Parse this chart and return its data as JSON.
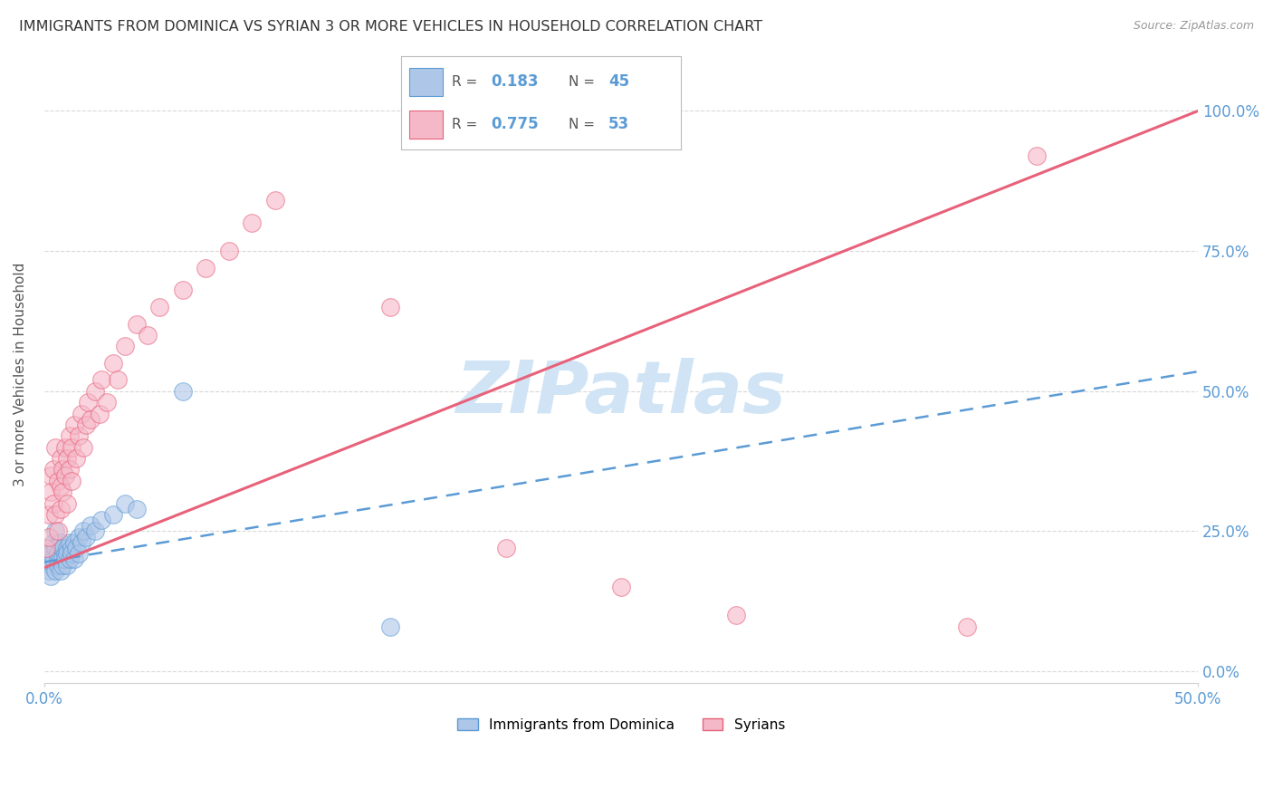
{
  "title": "IMMIGRANTS FROM DOMINICA VS SYRIAN 3 OR MORE VEHICLES IN HOUSEHOLD CORRELATION CHART",
  "source": "Source: ZipAtlas.com",
  "ylabel": "3 or more Vehicles in Household",
  "legend_label1": "Immigrants from Dominica",
  "legend_label2": "Syrians",
  "r1": 0.183,
  "n1": 45,
  "r2": 0.775,
  "n2": 53,
  "xlim": [
    0.0,
    0.5
  ],
  "ylim": [
    -0.02,
    1.08
  ],
  "yticks": [
    0.0,
    0.25,
    0.5,
    0.75,
    1.0
  ],
  "ytick_labels": [
    "0.0%",
    "25.0%",
    "50.0%",
    "75.0%",
    "100.0%"
  ],
  "xticks": [
    0.0,
    0.5
  ],
  "xtick_labels": [
    "0.0%",
    "50.0%"
  ],
  "color_blue": "#aec6e8",
  "color_pink": "#f5b8c8",
  "color_blue_line": "#5b9bd5",
  "color_pink_line": "#e8617a",
  "color_axis_labels": "#5b9bd5",
  "watermark_color": "#d0e4f5",
  "background_color": "#ffffff",
  "grid_color": "#d0d0d0",
  "dominica_x": [
    0.001,
    0.002,
    0.002,
    0.003,
    0.003,
    0.003,
    0.004,
    0.004,
    0.005,
    0.005,
    0.005,
    0.006,
    0.006,
    0.006,
    0.007,
    0.007,
    0.007,
    0.008,
    0.008,
    0.008,
    0.009,
    0.009,
    0.01,
    0.01,
    0.01,
    0.011,
    0.011,
    0.012,
    0.012,
    0.013,
    0.013,
    0.014,
    0.015,
    0.015,
    0.016,
    0.017,
    0.018,
    0.02,
    0.022,
    0.025,
    0.03,
    0.035,
    0.04,
    0.06,
    0.15
  ],
  "dominica_y": [
    0.22,
    0.2,
    0.18,
    0.21,
    0.19,
    0.17,
    0.23,
    0.2,
    0.25,
    0.22,
    0.18,
    0.2,
    0.19,
    0.21,
    0.23,
    0.2,
    0.18,
    0.22,
    0.2,
    0.19,
    0.21,
    0.2,
    0.22,
    0.21,
    0.19,
    0.23,
    0.2,
    0.22,
    0.21,
    0.23,
    0.2,
    0.22,
    0.24,
    0.21,
    0.23,
    0.25,
    0.24,
    0.26,
    0.25,
    0.27,
    0.28,
    0.3,
    0.29,
    0.5,
    0.08
  ],
  "syrian_x": [
    0.001,
    0.002,
    0.002,
    0.003,
    0.003,
    0.004,
    0.004,
    0.005,
    0.005,
    0.006,
    0.006,
    0.007,
    0.007,
    0.007,
    0.008,
    0.008,
    0.009,
    0.009,
    0.01,
    0.01,
    0.011,
    0.011,
    0.012,
    0.012,
    0.013,
    0.014,
    0.015,
    0.016,
    0.017,
    0.018,
    0.019,
    0.02,
    0.022,
    0.024,
    0.025,
    0.027,
    0.03,
    0.032,
    0.035,
    0.04,
    0.045,
    0.05,
    0.06,
    0.07,
    0.08,
    0.09,
    0.1,
    0.15,
    0.2,
    0.25,
    0.3,
    0.4,
    0.43
  ],
  "syrian_y": [
    0.22,
    0.28,
    0.24,
    0.35,
    0.32,
    0.3,
    0.36,
    0.28,
    0.4,
    0.34,
    0.25,
    0.38,
    0.33,
    0.29,
    0.36,
    0.32,
    0.4,
    0.35,
    0.38,
    0.3,
    0.42,
    0.36,
    0.4,
    0.34,
    0.44,
    0.38,
    0.42,
    0.46,
    0.4,
    0.44,
    0.48,
    0.45,
    0.5,
    0.46,
    0.52,
    0.48,
    0.55,
    0.52,
    0.58,
    0.62,
    0.6,
    0.65,
    0.68,
    0.72,
    0.75,
    0.8,
    0.84,
    0.65,
    0.22,
    0.15,
    0.1,
    0.08,
    0.92
  ],
  "trend_dom_x0": 0.0,
  "trend_dom_x1": 0.5,
  "trend_dom_y0": 0.195,
  "trend_dom_y1": 0.535,
  "trend_syr_x0": 0.0,
  "trend_syr_x1": 0.5,
  "trend_syr_y0": 0.185,
  "trend_syr_y1": 1.0
}
